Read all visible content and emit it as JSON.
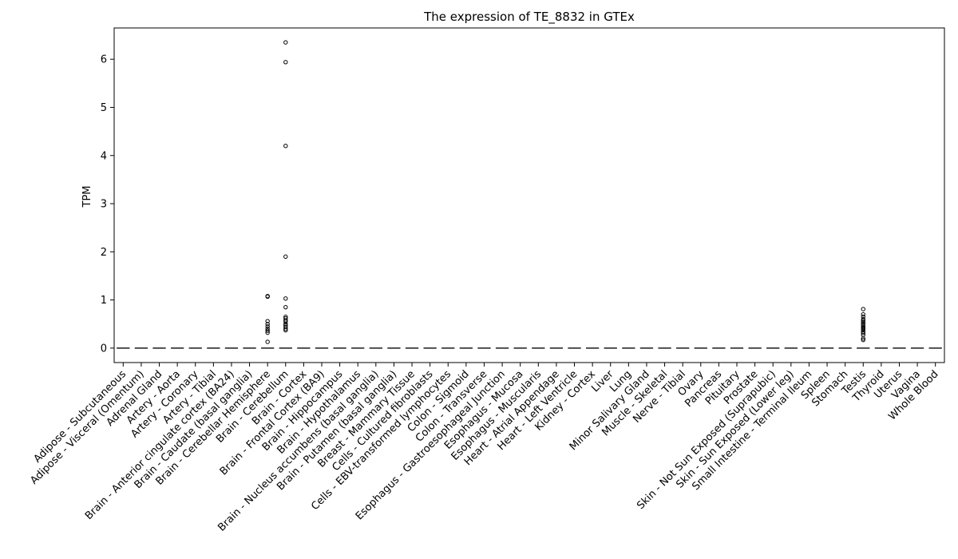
{
  "chart_data": {
    "type": "box",
    "title": "The expression of TE_8832 in GTEx",
    "xlabel": "",
    "ylabel": "TPM",
    "ylim": [
      -0.3,
      6.65
    ],
    "yticks": [
      0,
      1,
      2,
      3,
      4,
      5,
      6
    ],
    "grid": false,
    "colors": {
      "box": "#4d4d4d",
      "outlier": "#000000",
      "axis": "#000000"
    },
    "categories": [
      "Adipose - Subcutaneous",
      "Adipose - Visceral (Omentum)",
      "Adrenal Gland",
      "Artery - Aorta",
      "Artery - Coronary",
      "Artery - Tibial",
      "Brain - Anterior cingulate cortex (BA24)",
      "Brain - Caudate (basal ganglia)",
      "Brain - Cerebellar Hemisphere",
      "Brain - Cerebellum",
      "Brain - Cortex",
      "Brain - Frontal Cortex (BA9)",
      "Brain - Hippocampus",
      "Brain - Hypothalamus",
      "Brain - Nucleus accumbens (basal ganglia)",
      "Brain - Putamen (basal ganglia)",
      "Breast - Mammary Tissue",
      "Cells - Cultured fibroblasts",
      "Cells - EBV-transformed lymphocytes",
      "Colon - Sigmoid",
      "Colon - Transverse",
      "Esophagus - Gastroesophageal Junction",
      "Esophagus - Mucosa",
      "Esophagus - Muscularis",
      "Heart - Atrial Appendage",
      "Heart - Left Ventricle",
      "Kidney - Cortex",
      "Liver",
      "Lung",
      "Minor Salivary Gland",
      "Muscle - Skeletal",
      "Nerve - Tibial",
      "Ovary",
      "Pancreas",
      "Pituitary",
      "Prostate",
      "Skin - Not Sun Exposed (Suprapubic)",
      "Skin - Sun Exposed (Lower leg)",
      "Small Intestine - Terminal Ileum",
      "Spleen",
      "Stomach",
      "Testis",
      "Thyroid",
      "Uterus",
      "Vagina",
      "Whole Blood"
    ],
    "medians": [
      0,
      0,
      0,
      0,
      0,
      0,
      0,
      0,
      0,
      0,
      0,
      0,
      0,
      0,
      0,
      0,
      0,
      0,
      0,
      0,
      0,
      0,
      0,
      0,
      0,
      0,
      0,
      0,
      0,
      0,
      0,
      0,
      0,
      0,
      0,
      0,
      0,
      0,
      0,
      0,
      0,
      0,
      0,
      0,
      0,
      0
    ],
    "outliers": [
      {
        "category": "Brain - Cerebellar Hemisphere",
        "values": [
          1.08,
          1.07,
          0.56,
          0.5,
          0.45,
          0.4,
          0.36,
          0.32,
          0.13
        ]
      },
      {
        "category": "Brain - Cerebellum",
        "values": [
          6.35,
          5.94,
          4.2,
          1.9,
          1.03,
          0.85,
          0.65,
          0.62,
          0.58,
          0.55,
          0.5,
          0.47,
          0.44,
          0.4,
          0.37
        ]
      },
      {
        "category": "Testis",
        "values": [
          0.81,
          0.7,
          0.65,
          0.6,
          0.57,
          0.54,
          0.51,
          0.48,
          0.45,
          0.42,
          0.4,
          0.37,
          0.34,
          0.31,
          0.27,
          0.2,
          0.17
        ]
      }
    ]
  }
}
